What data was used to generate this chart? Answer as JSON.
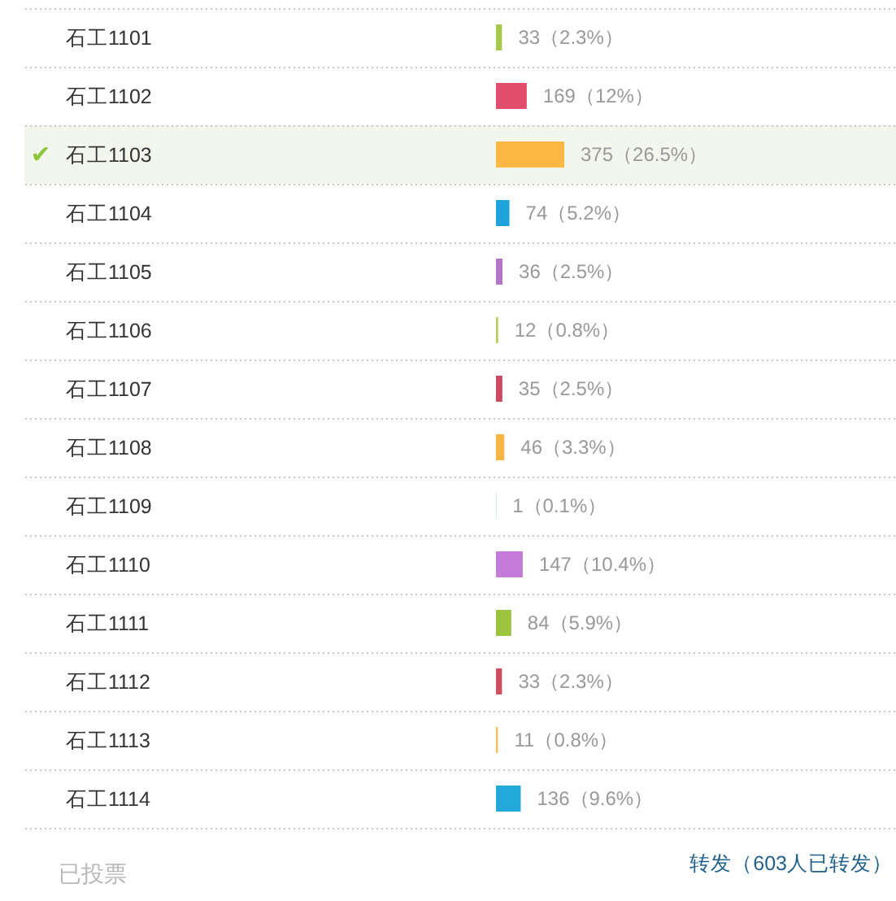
{
  "chart_data": {
    "type": "bar",
    "orientation": "horizontal",
    "categories": [
      "石工1101",
      "石工1102",
      "石工1103",
      "石工1104",
      "石工1105",
      "石工1106",
      "石工1107",
      "石工1108",
      "石工1109",
      "石工1110",
      "石工1111",
      "石工1112",
      "石工1113",
      "石工1114"
    ],
    "values": [
      33,
      169,
      375,
      74,
      36,
      12,
      35,
      46,
      1,
      147,
      84,
      33,
      11,
      136
    ],
    "colors": [
      "#a8c84c",
      "#e14d6a",
      "#fdb843",
      "#1fa3dc",
      "#b676c8",
      "#b8cc5a",
      "#cc4a62",
      "#f5b444",
      "#2aa6d8",
      "#c47ad8",
      "#9cc43c",
      "#cc5060",
      "#f2c060",
      "#23a8dc"
    ],
    "value_labels": [
      "33（2.3%）",
      "169（12%）",
      "375（26.5%）",
      "74（5.2%）",
      "36（2.5%）",
      "12（0.8%）",
      "35（2.5%）",
      "46（3.3%）",
      "1（0.1%）",
      "147（10.4%）",
      "84（5.9%）",
      "33（2.3%）",
      "11（0.8%）",
      "136（9.6%）"
    ],
    "grid": "y",
    "bands": [
      {
        "axis": "y",
        "from": "石工1103",
        "to": "石工1103",
        "label": "✔",
        "color": "#f3f6ec"
      }
    ],
    "annotations": [
      "已投票",
      "转发（603人已转发）"
    ]
  }
}
